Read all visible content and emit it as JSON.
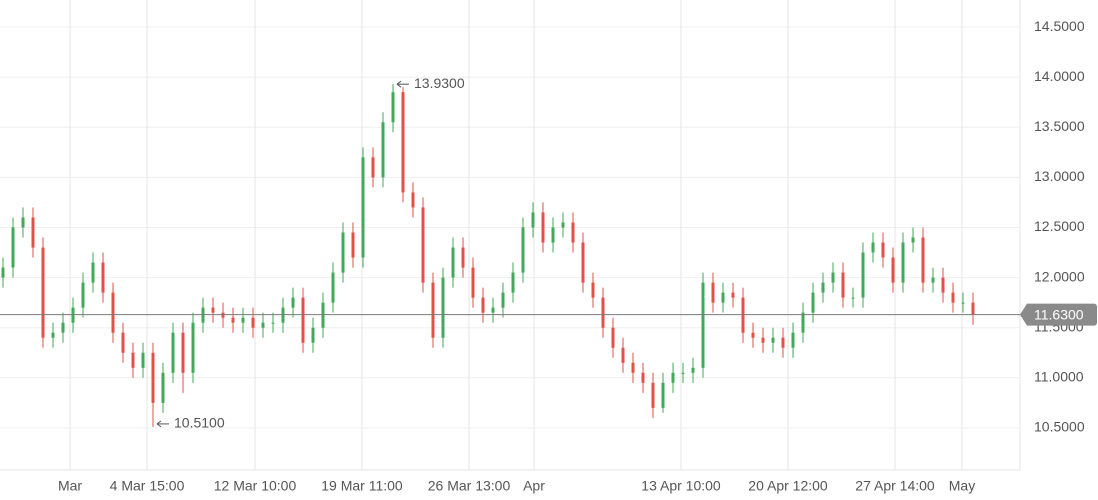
{
  "chart_data": {
    "type": "candlestick",
    "up_color": "#43a85a",
    "down_color": "#e2504a",
    "grid": true,
    "categories": [
      null,
      null,
      null,
      null,
      null,
      null,
      null,
      null,
      null,
      null,
      null,
      null,
      null,
      null,
      null,
      null,
      null,
      null,
      null,
      null,
      null,
      null,
      null,
      null,
      null,
      null,
      null,
      null,
      null,
      null,
      null,
      null,
      null,
      null,
      null,
      null,
      null,
      null,
      null,
      null,
      null,
      null,
      null,
      null,
      null,
      null,
      null,
      null,
      null,
      null,
      null,
      null,
      null,
      null,
      null,
      null,
      null,
      null,
      null,
      null,
      null,
      null,
      null,
      null,
      null,
      null,
      null,
      null,
      null,
      null,
      null,
      null,
      null,
      null,
      null,
      null,
      null,
      null,
      null,
      null,
      null,
      null,
      null,
      null,
      null,
      null,
      null,
      null,
      null,
      null,
      null,
      null,
      null,
      null,
      null,
      null,
      null,
      null
    ],
    "open": [
      12.0,
      12.1,
      12.5,
      12.6,
      12.3,
      11.4,
      11.45,
      11.55,
      11.7,
      11.95,
      12.15,
      11.85,
      11.45,
      11.25,
      11.1,
      11.25,
      10.75,
      11.05,
      11.45,
      11.05,
      11.55,
      11.7,
      11.65,
      11.6,
      11.55,
      11.6,
      11.5,
      11.55,
      11.55,
      11.7,
      11.8,
      11.35,
      11.5,
      11.75,
      12.05,
      12.45,
      12.2,
      13.2,
      13.0,
      13.55,
      13.85,
      12.85,
      12.7,
      11.95,
      11.4,
      12.0,
      12.3,
      12.1,
      11.8,
      11.65,
      11.7,
      11.85,
      12.05,
      12.5,
      12.65,
      12.35,
      12.5,
      12.55,
      12.35,
      11.95,
      11.8,
      11.5,
      11.3,
      11.15,
      11.05,
      10.95,
      10.7,
      10.95,
      11.05,
      11.05,
      11.1,
      11.95,
      11.75,
      11.85,
      11.8,
      11.45,
      11.4,
      11.35,
      11.4,
      11.3,
      11.45,
      11.65,
      11.85,
      11.95,
      12.05,
      11.8,
      11.8,
      12.25,
      12.35,
      12.2,
      11.95,
      12.35,
      12.4,
      11.95,
      12.0,
      11.85,
      11.75,
      11.75
    ],
    "high": [
      12.2,
      12.6,
      12.7,
      12.7,
      12.4,
      11.55,
      11.65,
      11.8,
      12.05,
      12.25,
      12.25,
      11.95,
      11.55,
      11.35,
      11.35,
      11.35,
      11.15,
      11.55,
      11.55,
      11.65,
      11.8,
      11.8,
      11.75,
      11.7,
      11.7,
      11.7,
      11.65,
      11.65,
      11.8,
      11.9,
      11.9,
      11.6,
      11.85,
      12.15,
      12.55,
      12.55,
      13.3,
      13.3,
      13.65,
      13.93,
      13.9,
      12.95,
      12.8,
      12.05,
      12.1,
      12.4,
      12.4,
      12.2,
      11.9,
      11.8,
      11.95,
      12.15,
      12.6,
      12.75,
      12.75,
      12.6,
      12.65,
      12.65,
      12.45,
      12.05,
      11.9,
      11.6,
      11.4,
      11.25,
      11.15,
      11.05,
      11.05,
      11.15,
      11.15,
      11.2,
      12.05,
      12.05,
      11.95,
      11.95,
      11.9,
      11.55,
      11.5,
      11.5,
      11.5,
      11.55,
      11.75,
      11.95,
      12.05,
      12.15,
      12.15,
      11.9,
      12.35,
      12.45,
      12.45,
      12.3,
      12.45,
      12.5,
      12.5,
      12.1,
      12.1,
      11.95,
      11.85,
      11.85
    ],
    "low": [
      11.9,
      12.0,
      12.4,
      12.2,
      11.3,
      11.3,
      11.35,
      11.45,
      11.6,
      11.85,
      11.75,
      11.35,
      11.15,
      11.0,
      11.0,
      10.51,
      10.65,
      10.95,
      10.85,
      10.95,
      11.45,
      11.55,
      11.5,
      11.45,
      11.45,
      11.4,
      11.4,
      11.45,
      11.45,
      11.6,
      11.25,
      11.25,
      11.4,
      11.65,
      11.95,
      12.1,
      12.1,
      12.9,
      12.9,
      13.45,
      12.75,
      12.6,
      11.85,
      11.3,
      11.3,
      11.9,
      12.0,
      11.7,
      11.55,
      11.55,
      11.6,
      11.75,
      11.95,
      12.4,
      12.25,
      12.25,
      12.4,
      12.25,
      11.85,
      11.7,
      11.4,
      11.2,
      11.05,
      10.95,
      10.85,
      10.6,
      10.65,
      10.85,
      10.95,
      10.95,
      11.0,
      11.65,
      11.65,
      11.7,
      11.35,
      11.3,
      11.25,
      11.25,
      11.2,
      11.2,
      11.35,
      11.55,
      11.75,
      11.85,
      11.7,
      11.7,
      11.7,
      12.15,
      12.1,
      11.85,
      11.85,
      12.25,
      11.85,
      11.85,
      11.75,
      11.65,
      11.65,
      11.53
    ],
    "close": [
      12.1,
      12.5,
      12.6,
      12.3,
      11.4,
      11.45,
      11.55,
      11.7,
      11.95,
      12.15,
      11.85,
      11.45,
      11.25,
      11.1,
      11.25,
      10.75,
      11.05,
      11.45,
      11.05,
      11.55,
      11.7,
      11.65,
      11.6,
      11.55,
      11.6,
      11.5,
      11.55,
      11.55,
      11.7,
      11.8,
      11.35,
      11.5,
      11.75,
      12.05,
      12.45,
      12.2,
      13.2,
      13.0,
      13.55,
      13.85,
      12.85,
      12.7,
      11.95,
      11.4,
      12.0,
      12.3,
      12.1,
      11.8,
      11.65,
      11.7,
      11.85,
      12.05,
      12.5,
      12.65,
      12.35,
      12.5,
      12.55,
      12.35,
      11.95,
      11.8,
      11.5,
      11.3,
      11.15,
      11.05,
      10.95,
      10.7,
      10.95,
      11.05,
      11.05,
      11.1,
      11.95,
      11.75,
      11.85,
      11.8,
      11.45,
      11.4,
      11.35,
      11.4,
      11.3,
      11.45,
      11.65,
      11.85,
      11.95,
      12.05,
      11.8,
      11.8,
      12.25,
      12.35,
      12.2,
      11.95,
      12.35,
      12.4,
      11.95,
      12.0,
      11.85,
      11.75,
      11.75,
      11.63
    ],
    "xticks": [
      {
        "value": 6.7,
        "label": "Mar"
      },
      {
        "value": 14.4,
        "label": "4 Mar 15:00"
      },
      {
        "value": 25.2,
        "label": "12 Mar 10:00"
      },
      {
        "value": 35.9,
        "label": "19 Mar 11:00"
      },
      {
        "value": 46.6,
        "label": "26 Mar 13:00"
      },
      {
        "value": 53.1,
        "label": "Apr"
      },
      {
        "value": 67.8,
        "label": "13 Apr 10:00"
      },
      {
        "value": 78.5,
        "label": "20 Apr 12:00"
      },
      {
        "value": 89.2,
        "label": "27 Apr 14:00"
      },
      {
        "value": 95.9,
        "label": "May"
      }
    ],
    "ylim": [
      10.08,
      14.77
    ],
    "yticks": [
      {
        "value": 10.5,
        "label": "10.5000"
      },
      {
        "value": 11,
        "label": "11.0000"
      },
      {
        "value": 11.5,
        "label": "11.5000"
      },
      {
        "value": 12,
        "label": "12.0000"
      },
      {
        "value": 12.5,
        "label": "12.5000"
      },
      {
        "value": 13,
        "label": "13.0000"
      },
      {
        "value": 13.5,
        "label": "13.5000"
      },
      {
        "value": 14,
        "label": "14.0000"
      },
      {
        "value": 14.5,
        "label": "14.5000"
      }
    ],
    "annotations": [
      {
        "label": "13.9300",
        "value": 13.93
      },
      {
        "label": "10.5100",
        "value": 10.51
      }
    ],
    "last_price": {
      "value": 11.63,
      "label": "11.6300"
    }
  }
}
